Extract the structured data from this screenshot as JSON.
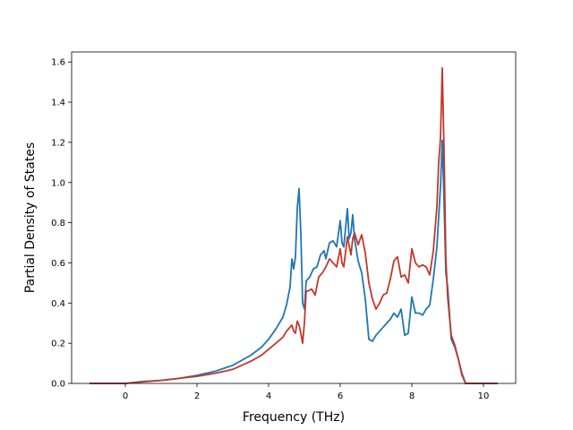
{
  "chart_data": {
    "type": "line",
    "title": "",
    "xlabel": "Frequency (THz)",
    "ylabel": "Partial Density of States",
    "xlim": [
      -1.5,
      10.9
    ],
    "ylim": [
      0.0,
      1.65
    ],
    "xticks": [
      0,
      2,
      4,
      6,
      8,
      10
    ],
    "xtick_labels": [
      "0",
      "2",
      "4",
      "6",
      "8",
      "10"
    ],
    "yticks": [
      0.0,
      0.2,
      0.4,
      0.6,
      0.8,
      1.0,
      1.2,
      1.4,
      1.6
    ],
    "ytick_labels": [
      "0.0",
      "0.2",
      "0.4",
      "0.6",
      "0.8",
      "1.0",
      "1.2",
      "1.4",
      "1.6"
    ],
    "grid": false,
    "legend": "none",
    "series": [
      {
        "color": "#1f77b4",
        "x": [
          -1.0,
          0.0,
          0.5,
          1.0,
          1.5,
          2.0,
          2.5,
          3.0,
          3.5,
          3.8,
          4.0,
          4.2,
          4.4,
          4.5,
          4.6,
          4.65,
          4.7,
          4.75,
          4.8,
          4.85,
          4.9,
          4.95,
          5.0,
          5.05,
          5.15,
          5.25,
          5.35,
          5.45,
          5.55,
          5.6,
          5.7,
          5.8,
          5.9,
          6.0,
          6.05,
          6.1,
          6.2,
          6.25,
          6.3,
          6.35,
          6.4,
          6.5,
          6.6,
          6.7,
          6.8,
          6.9,
          7.0,
          7.2,
          7.4,
          7.5,
          7.6,
          7.7,
          7.8,
          7.9,
          8.0,
          8.1,
          8.2,
          8.3,
          8.4,
          8.5,
          8.6,
          8.7,
          8.8,
          8.85,
          8.9,
          8.95,
          9.0,
          9.1,
          9.2,
          9.3,
          9.4,
          9.5,
          10.0,
          10.4
        ],
        "y": [
          0.0,
          0.0,
          0.01,
          0.015,
          0.025,
          0.04,
          0.06,
          0.09,
          0.14,
          0.18,
          0.22,
          0.27,
          0.33,
          0.39,
          0.48,
          0.62,
          0.57,
          0.63,
          0.87,
          0.97,
          0.75,
          0.4,
          0.37,
          0.51,
          0.53,
          0.57,
          0.58,
          0.64,
          0.66,
          0.62,
          0.7,
          0.71,
          0.68,
          0.81,
          0.7,
          0.68,
          0.87,
          0.72,
          0.75,
          0.84,
          0.72,
          0.61,
          0.55,
          0.42,
          0.22,
          0.21,
          0.24,
          0.28,
          0.32,
          0.35,
          0.33,
          0.37,
          0.24,
          0.25,
          0.43,
          0.35,
          0.35,
          0.34,
          0.37,
          0.39,
          0.52,
          0.68,
          0.98,
          1.21,
          0.9,
          0.55,
          0.48,
          0.22,
          0.18,
          0.12,
          0.05,
          0.0,
          0.0,
          0.0
        ]
      },
      {
        "color": "#c0392b",
        "x": [
          -1.0,
          0.0,
          0.5,
          1.0,
          1.5,
          2.0,
          2.5,
          3.0,
          3.5,
          3.8,
          4.0,
          4.2,
          4.4,
          4.5,
          4.6,
          4.65,
          4.7,
          4.75,
          4.8,
          4.85,
          4.9,
          4.95,
          5.0,
          5.05,
          5.1,
          5.2,
          5.3,
          5.4,
          5.5,
          5.6,
          5.7,
          5.8,
          5.9,
          6.0,
          6.05,
          6.1,
          6.2,
          6.3,
          6.35,
          6.4,
          6.5,
          6.6,
          6.7,
          6.8,
          6.9,
          7.0,
          7.1,
          7.2,
          7.3,
          7.4,
          7.5,
          7.6,
          7.7,
          7.8,
          7.9,
          8.0,
          8.1,
          8.2,
          8.3,
          8.4,
          8.5,
          8.6,
          8.7,
          8.75,
          8.8,
          8.85,
          8.9,
          8.95,
          9.0,
          9.1,
          9.2,
          9.3,
          9.4,
          9.5,
          10.0,
          10.4
        ],
        "y": [
          0.0,
          0.0,
          0.008,
          0.015,
          0.025,
          0.035,
          0.05,
          0.07,
          0.11,
          0.14,
          0.17,
          0.2,
          0.23,
          0.26,
          0.28,
          0.29,
          0.26,
          0.25,
          0.31,
          0.29,
          0.25,
          0.2,
          0.3,
          0.46,
          0.46,
          0.47,
          0.44,
          0.53,
          0.55,
          0.58,
          0.62,
          0.6,
          0.58,
          0.67,
          0.6,
          0.58,
          0.73,
          0.64,
          0.72,
          0.75,
          0.69,
          0.74,
          0.65,
          0.5,
          0.42,
          0.37,
          0.4,
          0.44,
          0.45,
          0.52,
          0.61,
          0.63,
          0.53,
          0.54,
          0.5,
          0.67,
          0.6,
          0.58,
          0.59,
          0.58,
          0.54,
          0.66,
          0.88,
          1.1,
          1.22,
          1.57,
          1.15,
          0.62,
          0.43,
          0.24,
          0.19,
          0.12,
          0.04,
          0.0,
          0.0,
          0.0
        ]
      }
    ]
  }
}
